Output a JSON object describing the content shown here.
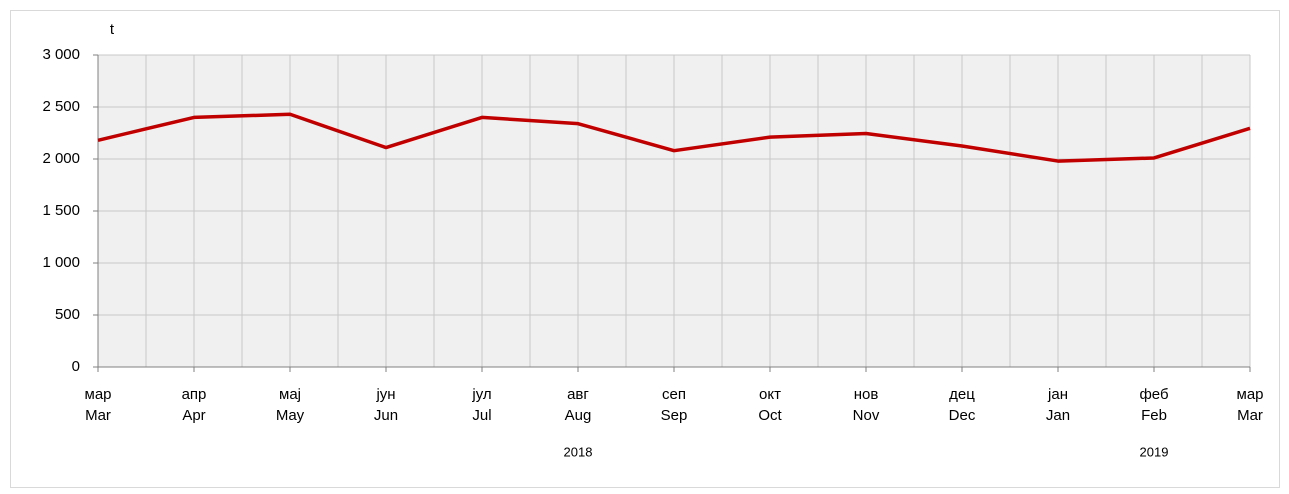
{
  "chart_data": {
    "type": "line",
    "y_label": "t",
    "categories": [
      [
        "мар",
        "Mar"
      ],
      [
        "апр",
        "Apr"
      ],
      [
        "мај",
        "May"
      ],
      [
        "јун",
        "Jun"
      ],
      [
        "јул",
        "Jul"
      ],
      [
        "авг",
        "Aug"
      ],
      [
        "сеп",
        "Sep"
      ],
      [
        "окт",
        "Oct"
      ],
      [
        "нов",
        "Nov"
      ],
      [
        "дец",
        "Dec"
      ],
      [
        "јан",
        "Jan"
      ],
      [
        "феб",
        "Feb"
      ],
      [
        "мар",
        "Mar"
      ]
    ],
    "year_labels": [
      "2018",
      "2019"
    ],
    "series": [
      {
        "color": "#c00000",
        "values": [
          2180,
          2400,
          2430,
          2110,
          2400,
          2340,
          2080,
          2210,
          2245,
          2125,
          1980,
          2010,
          2295
        ]
      }
    ],
    "ylim": [
      0,
      3000
    ],
    "yticks": [
      0,
      500,
      {
        "value": 1000,
        "label": "1 000"
      },
      {
        "value": 1500,
        "label": "1 500"
      },
      {
        "value": 2000,
        "label": "2 000"
      },
      {
        "value": 2500,
        "label": "2 500"
      },
      {
        "value": 3000,
        "label": "3 000"
      }
    ],
    "grid": true
  }
}
